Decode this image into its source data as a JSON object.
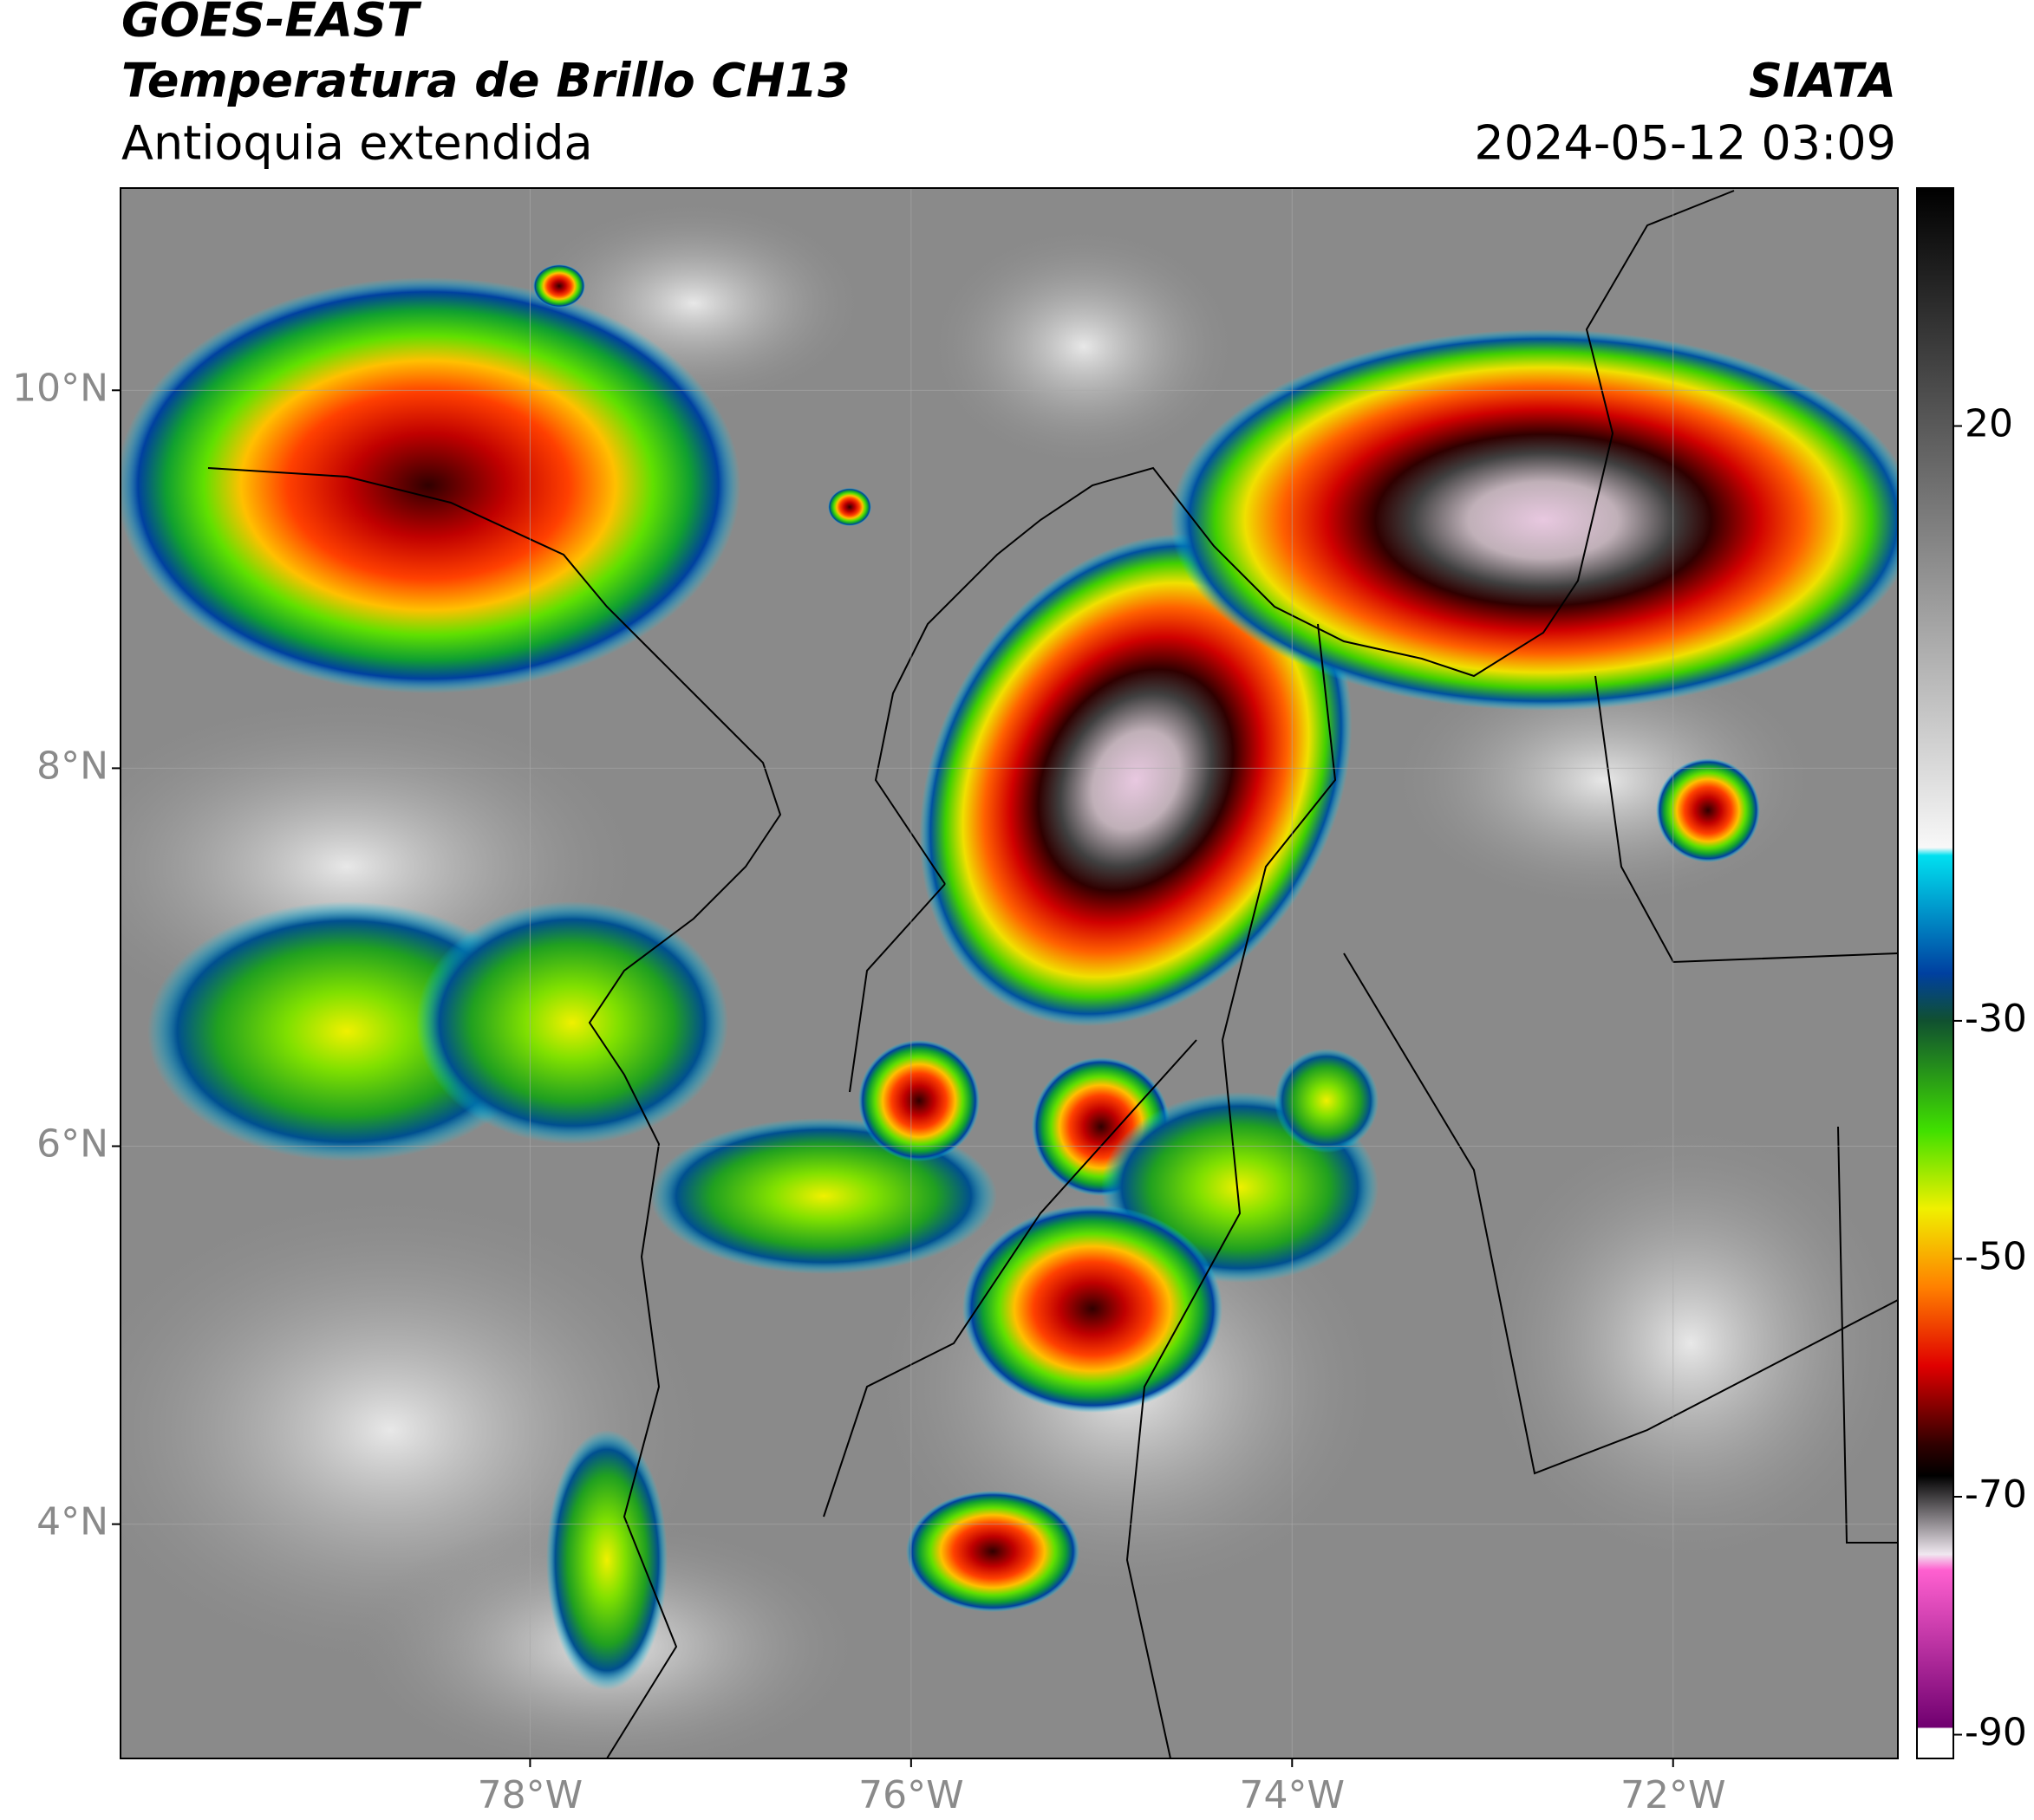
{
  "header": {
    "line1": "GOES-EAST",
    "line2": "Temperatura de Brillo CH13",
    "line3": "Antioquia extendida",
    "source": "SIATA",
    "datetime": "2024-05-12 03:09"
  },
  "map": {
    "xlim": [
      -80.15,
      -70.82
    ],
    "ylim": [
      2.76,
      11.07
    ],
    "xticks": [
      {
        "value": -78,
        "label": "78°W"
      },
      {
        "value": -76,
        "label": "76°W"
      },
      {
        "value": -74,
        "label": "74°W"
      },
      {
        "value": -72,
        "label": "72°W"
      }
    ],
    "yticks": [
      {
        "value": 4,
        "label": "4°N"
      },
      {
        "value": 6,
        "label": "6°N"
      },
      {
        "value": 8,
        "label": "8°N"
      },
      {
        "value": 10,
        "label": "10°N"
      }
    ],
    "grid": true
  },
  "colorbar": {
    "lim": [
      -92,
      40
    ],
    "ticks": [
      20,
      -30,
      -50,
      -70,
      -90
    ]
  }
}
